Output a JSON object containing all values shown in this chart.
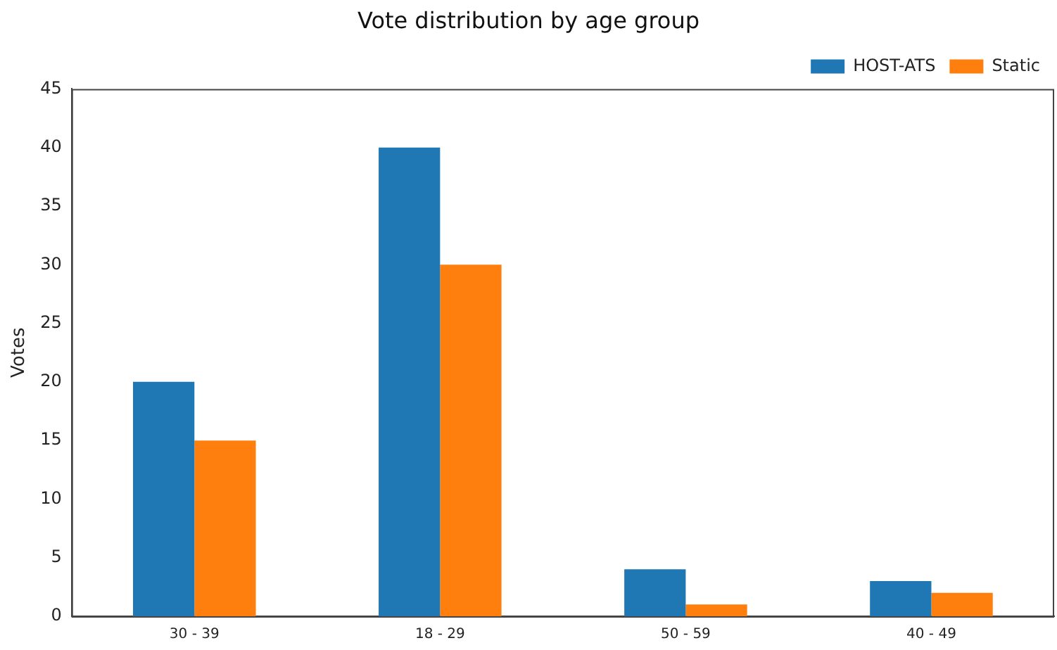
{
  "chart_data": {
    "type": "bar",
    "title": "Vote distribution by age group",
    "ylabel": "Votes",
    "categories": [
      "30 - 39",
      "18 - 29",
      "50 - 59",
      "40 - 49"
    ],
    "series": [
      {
        "name": "HOST-ATS",
        "color": "#1f77b4",
        "values": [
          20,
          40,
          4,
          3
        ]
      },
      {
        "name": "Static",
        "color": "#ff7f0e",
        "values": [
          15,
          30,
          1,
          2
        ]
      }
    ],
    "ylim": [
      0,
      45
    ],
    "yticks": [
      0,
      5,
      10,
      15,
      20,
      25,
      30,
      35,
      40,
      45
    ],
    "grid": false,
    "legend": "top right"
  }
}
